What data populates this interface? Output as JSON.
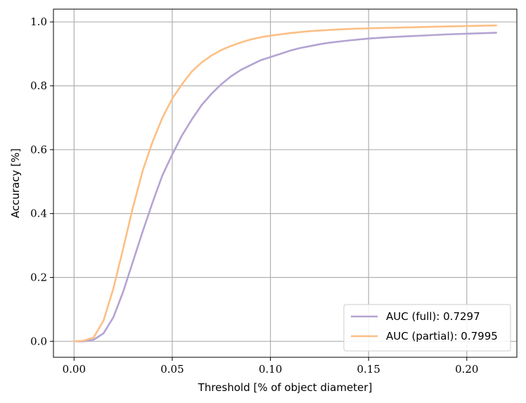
{
  "chart_data": {
    "type": "line",
    "xlabel": "Threshold [% of object diameter]",
    "ylabel": "Accuracy [%]",
    "xlim": [
      -0.0105,
      0.2255
    ],
    "ylim": [
      -0.05,
      1.04
    ],
    "xticks": [
      0.0,
      0.05,
      0.1,
      0.15,
      0.2
    ],
    "xtick_labels": [
      "0.00",
      "0.05",
      "0.10",
      "0.15",
      "0.20"
    ],
    "yticks": [
      0.0,
      0.2,
      0.4,
      0.6,
      0.8,
      1.0
    ],
    "ytick_labels": [
      "0.0",
      "0.2",
      "0.4",
      "0.6",
      "0.8",
      "1.0"
    ],
    "grid": true,
    "legend_position": "bottom-right",
    "series": [
      {
        "name": "AUC (full):",
        "value_label": "0.7297",
        "color": "#b4a4d2",
        "x": [
          0.0,
          0.005,
          0.01,
          0.015,
          0.02,
          0.025,
          0.03,
          0.035,
          0.04,
          0.045,
          0.05,
          0.055,
          0.06,
          0.065,
          0.07,
          0.075,
          0.08,
          0.085,
          0.09,
          0.095,
          0.1,
          0.105,
          0.11,
          0.115,
          0.12,
          0.125,
          0.13,
          0.14,
          0.15,
          0.16,
          0.17,
          0.18,
          0.19,
          0.2,
          0.215
        ],
        "y": [
          0.0,
          0.0,
          0.005,
          0.025,
          0.075,
          0.155,
          0.25,
          0.345,
          0.435,
          0.52,
          0.585,
          0.645,
          0.695,
          0.74,
          0.775,
          0.805,
          0.83,
          0.85,
          0.865,
          0.88,
          0.89,
          0.9,
          0.91,
          0.918,
          0.924,
          0.93,
          0.935,
          0.942,
          0.948,
          0.952,
          0.955,
          0.958,
          0.961,
          0.963,
          0.966
        ]
      },
      {
        "name": "AUC (partial):",
        "value_label": "0.7995",
        "color": "#fdbf85",
        "x": [
          0.0,
          0.005,
          0.01,
          0.015,
          0.02,
          0.025,
          0.03,
          0.035,
          0.04,
          0.045,
          0.05,
          0.055,
          0.06,
          0.065,
          0.07,
          0.075,
          0.08,
          0.085,
          0.09,
          0.095,
          0.1,
          0.11,
          0.12,
          0.13,
          0.14,
          0.15,
          0.17,
          0.19,
          0.215
        ],
        "y": [
          0.0,
          0.002,
          0.012,
          0.065,
          0.165,
          0.29,
          0.42,
          0.535,
          0.625,
          0.7,
          0.76,
          0.805,
          0.845,
          0.873,
          0.895,
          0.912,
          0.925,
          0.936,
          0.945,
          0.952,
          0.957,
          0.965,
          0.971,
          0.975,
          0.978,
          0.98,
          0.983,
          0.986,
          0.989
        ]
      }
    ]
  }
}
